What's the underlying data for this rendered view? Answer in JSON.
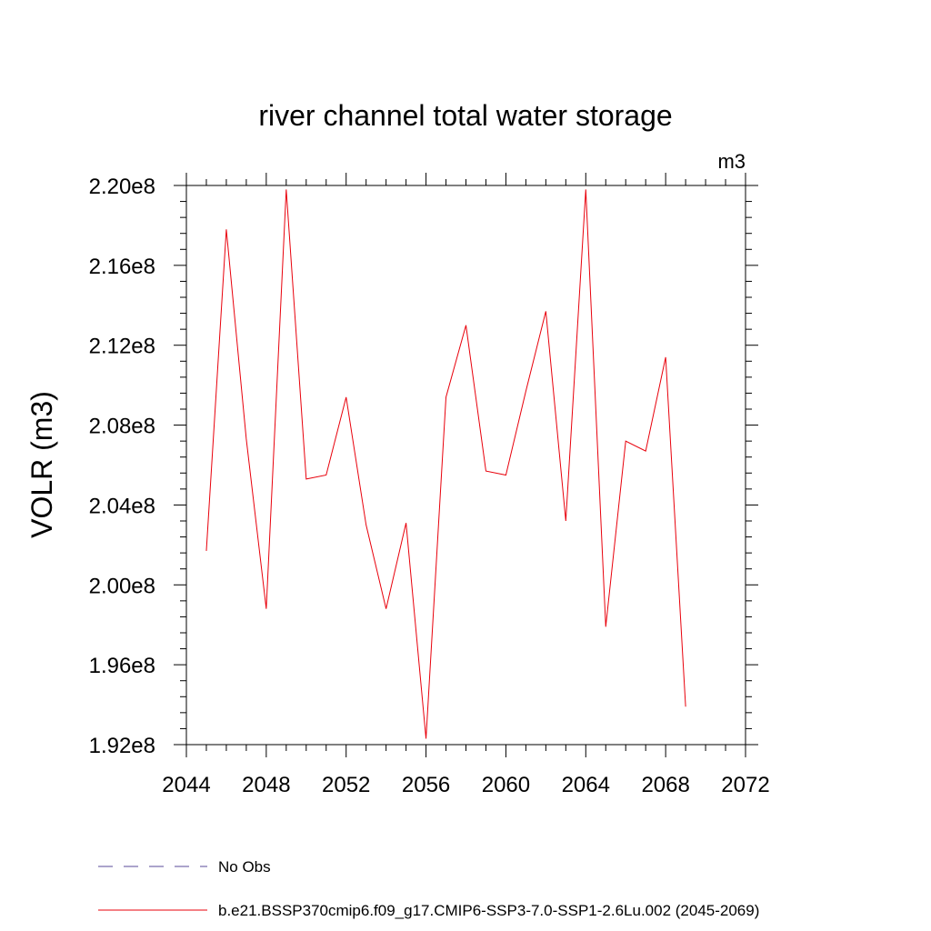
{
  "chart_data": {
    "type": "line",
    "title": "river channel total water storage",
    "units_label": "m3",
    "xlabel": "",
    "ylabel": "VOLR  (m3)",
    "xlim": [
      2044,
      2072
    ],
    "ylim": [
      192000000.0,
      220000000.0
    ],
    "x_ticks": [
      2044,
      2048,
      2052,
      2056,
      2060,
      2064,
      2068,
      2072
    ],
    "x_tick_labels": [
      "2044",
      "2048",
      "2052",
      "2056",
      "2060",
      "2064",
      "2068",
      "2072"
    ],
    "y_ticks": [
      192000000.0,
      196000000.0,
      200000000.0,
      204000000.0,
      208000000.0,
      212000000.0,
      216000000.0,
      220000000.0
    ],
    "y_tick_labels": [
      "1.92e8",
      "1.96e8",
      "2.00e8",
      "2.04e8",
      "2.08e8",
      "2.12e8",
      "2.16e8",
      "2.20e8"
    ],
    "grid": false,
    "legend_position": "bottom",
    "series": [
      {
        "name": "No Obs",
        "color": "#5a4a9a",
        "style": "dashed",
        "x": [],
        "values": []
      },
      {
        "name": "b.e21.BSSP370cmip6.f09_g17.CMIP6-SSP3-7.0-SSP1-2.6Lu.002 (2045-2069)",
        "color": "#e8000b",
        "style": "solid",
        "x": [
          2045,
          2046,
          2047,
          2048,
          2049,
          2050,
          2051,
          2052,
          2053,
          2054,
          2055,
          2056,
          2057,
          2058,
          2059,
          2060,
          2061,
          2062,
          2063,
          2064,
          2065,
          2066,
          2067,
          2068,
          2069
        ],
        "values": [
          201700000.0,
          217800000.0,
          207300000.0,
          198800000.0,
          219800000.0,
          205300000.0,
          205500000.0,
          209400000.0,
          203000000.0,
          198800000.0,
          203100000.0,
          192300000.0,
          209400000.0,
          213000000.0,
          205700000.0,
          205500000.0,
          209700000.0,
          213700000.0,
          203200000.0,
          219800000.0,
          197900000.0,
          207200000.0,
          206700000.0,
          211400000.0,
          193900000.0
        ]
      }
    ]
  }
}
